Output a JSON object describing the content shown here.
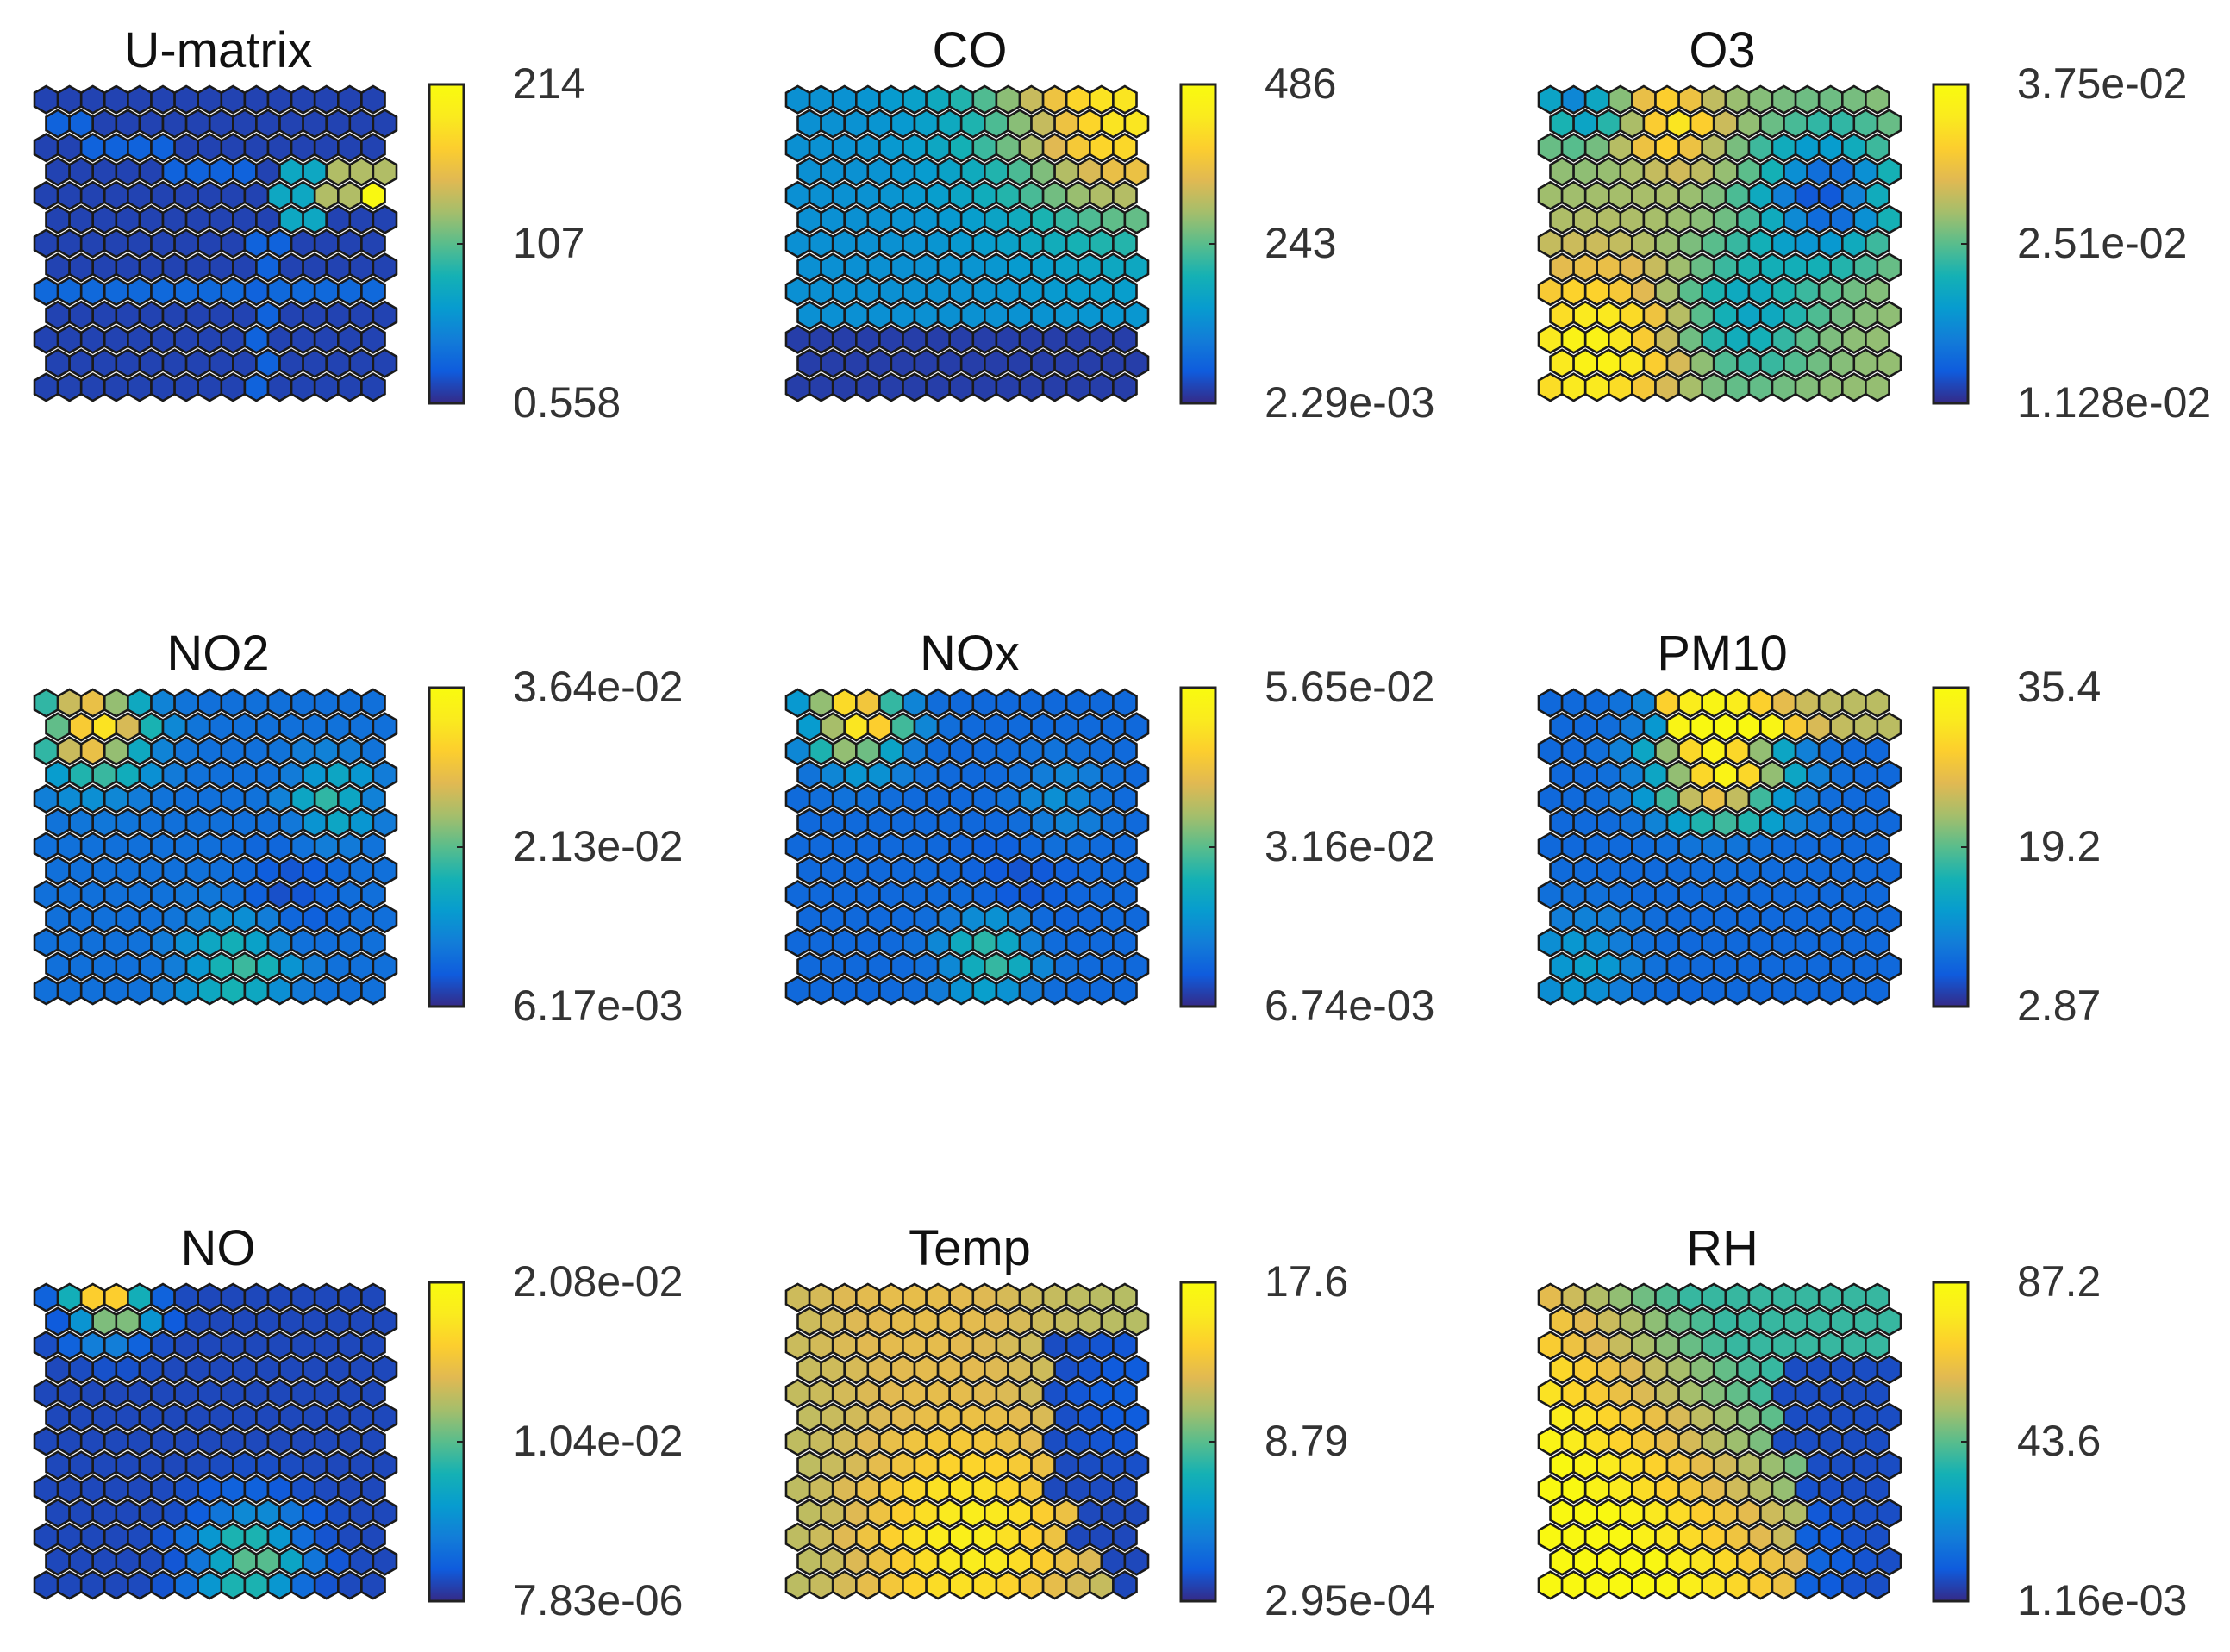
{
  "chart_data": {
    "type": "heatmap",
    "description_type": "som-component-planes",
    "colormap": "parula",
    "grid": {
      "cols": 15,
      "rows": 13,
      "shape": "hexagonal"
    },
    "panels": [
      {
        "key": "umatrix",
        "title": "U-matrix",
        "ticks": [
          "214",
          "107",
          "0.558"
        ],
        "range": [
          0.558,
          214
        ]
      },
      {
        "key": "co",
        "title": "CO",
        "ticks": [
          "486",
          "243",
          "2.29e-03"
        ],
        "range": [
          0.00229,
          486
        ]
      },
      {
        "key": "o3",
        "title": "O3",
        "ticks": [
          "3.75e-02",
          "2.51e-02",
          "1.128e-02"
        ],
        "range": [
          0.01128,
          0.0375
        ]
      },
      {
        "key": "no2",
        "title": "NO2",
        "ticks": [
          "3.64e-02",
          "2.13e-02",
          "6.17e-03"
        ],
        "range": [
          0.00617,
          0.0364
        ]
      },
      {
        "key": "nox",
        "title": "NOx",
        "ticks": [
          "5.65e-02",
          "3.16e-02",
          "6.74e-03"
        ],
        "range": [
          0.00674,
          0.0565
        ]
      },
      {
        "key": "pm10",
        "title": "PM10",
        "ticks": [
          "35.4",
          "19.2",
          "2.87"
        ],
        "range": [
          2.87,
          35.4
        ]
      },
      {
        "key": "no",
        "title": "NO",
        "ticks": [
          "2.08e-02",
          "1.04e-02",
          "7.83e-06"
        ],
        "range": [
          7.83e-06,
          0.0208
        ]
      },
      {
        "key": "temp",
        "title": "Temp",
        "ticks": [
          "17.6",
          "8.79",
          "2.95e-04"
        ],
        "range": [
          0.000295,
          17.6
        ]
      },
      {
        "key": "rh",
        "title": "RH",
        "ticks": [
          "87.2",
          "43.6",
          "1.16e-03"
        ],
        "range": [
          0.00116,
          87.2
        ]
      }
    ]
  }
}
